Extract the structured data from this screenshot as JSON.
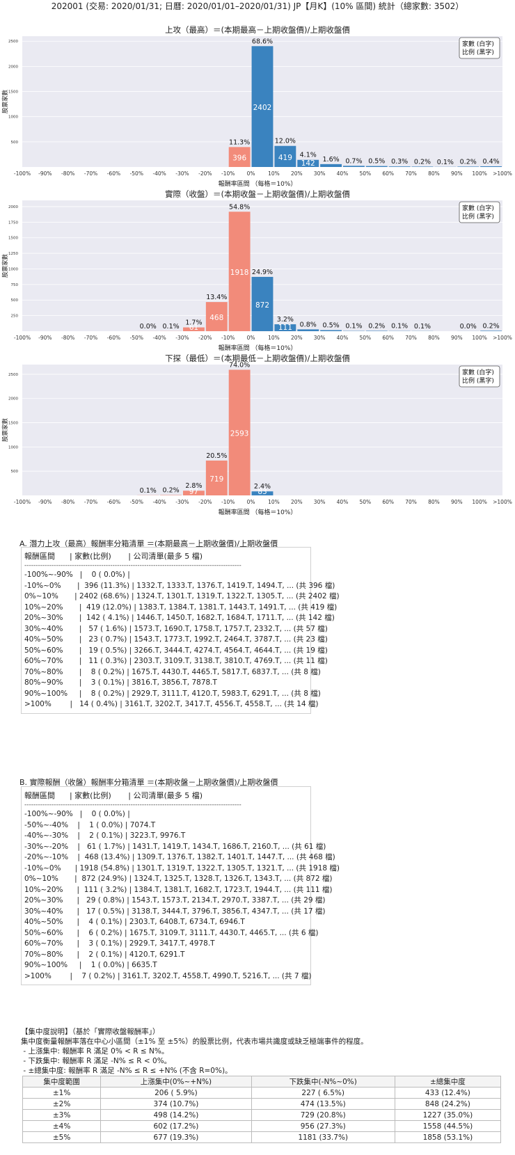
{
  "header": {
    "title": "202001 (交易: 2020/01/31; 日曆: 2020/01/01–2020/01/31) JP【月K】(10% 區間) 統計（總家數: 3502）"
  },
  "chart_data": [
    {
      "type": "bar",
      "title": "上攻（最高）＝(本期最高－上期收盤價)/上期收盤價",
      "ylabel": "股票家數",
      "xlabel": "報酬率區間 （每格＝10%）",
      "legend": [
        "家數 (白字)",
        "比例 (黑字)"
      ],
      "legend_position": "top-right",
      "xticks": [
        "-100%",
        "-90%",
        "-80%",
        "-70%",
        "-60%",
        "-50%",
        "-40%",
        "-30%",
        "-20%",
        "-10%",
        "0%",
        "10%",
        "20%",
        "30%",
        "40%",
        "50%",
        "60%",
        "70%",
        "80%",
        "90%",
        "100%",
        ">100%"
      ],
      "yticks": [
        500,
        1000,
        1500,
        2000,
        2500
      ],
      "ylim": [
        0,
        2600
      ],
      "colors": {
        "negative": "#f28b7a",
        "positive": "#3a83bf"
      },
      "bins": [
        {
          "value": 0,
          "pct": "",
          "count_label": ""
        },
        {
          "value": 0,
          "pct": "",
          "count_label": ""
        },
        {
          "value": 0,
          "pct": "",
          "count_label": ""
        },
        {
          "value": 0,
          "pct": "",
          "count_label": ""
        },
        {
          "value": 0,
          "pct": "",
          "count_label": ""
        },
        {
          "value": 0,
          "pct": "",
          "count_label": ""
        },
        {
          "value": 0,
          "pct": "",
          "count_label": ""
        },
        {
          "value": 0,
          "pct": "",
          "count_label": ""
        },
        {
          "value": 0,
          "pct": "",
          "count_label": ""
        },
        {
          "value": 396,
          "pct": "11.3%",
          "count_label": "396"
        },
        {
          "value": 2402,
          "pct": "68.6%",
          "count_label": "2402"
        },
        {
          "value": 419,
          "pct": "12.0%",
          "count_label": "419"
        },
        {
          "value": 142,
          "pct": "4.1%",
          "count_label": "142"
        },
        {
          "value": 57,
          "pct": "1.6%",
          "count_label": ""
        },
        {
          "value": 23,
          "pct": "0.7%",
          "count_label": ""
        },
        {
          "value": 19,
          "pct": "0.5%",
          "count_label": ""
        },
        {
          "value": 11,
          "pct": "0.3%",
          "count_label": ""
        },
        {
          "value": 8,
          "pct": "0.2%",
          "count_label": ""
        },
        {
          "value": 3,
          "pct": "0.1%",
          "count_label": ""
        },
        {
          "value": 8,
          "pct": "0.2%",
          "count_label": ""
        },
        {
          "value": 14,
          "pct": "0.4%",
          "count_label": ""
        }
      ]
    },
    {
      "type": "bar",
      "title": "實際（收盤）＝(本期收盤－上期收盤價)/上期收盤價",
      "ylabel": "股票家數",
      "xlabel": "報酬率區間 （每格＝10%）",
      "legend": [
        "家數 (白字)",
        "比例 (黑字)"
      ],
      "legend_position": "top-right",
      "xticks": [
        "-100%",
        "-90%",
        "-80%",
        "-70%",
        "-60%",
        "-50%",
        "-40%",
        "-30%",
        "-20%",
        "-10%",
        "0%",
        "10%",
        "20%",
        "30%",
        "40%",
        "50%",
        "60%",
        "70%",
        "80%",
        "90%",
        "100%",
        ">100%"
      ],
      "yticks": [
        250,
        500,
        750,
        1000,
        1250,
        1500,
        1750,
        2000
      ],
      "ylim": [
        0,
        2100
      ],
      "colors": {
        "negative": "#f28b7a",
        "positive": "#3a83bf"
      },
      "bins": [
        {
          "value": 0,
          "pct": "",
          "count_label": ""
        },
        {
          "value": 0,
          "pct": "",
          "count_label": ""
        },
        {
          "value": 0,
          "pct": "",
          "count_label": ""
        },
        {
          "value": 0,
          "pct": "",
          "count_label": ""
        },
        {
          "value": 0,
          "pct": "",
          "count_label": ""
        },
        {
          "value": 1,
          "pct": "0.0%",
          "count_label": ""
        },
        {
          "value": 2,
          "pct": "0.1%",
          "count_label": ""
        },
        {
          "value": 61,
          "pct": "1.7%",
          "count_label": "61"
        },
        {
          "value": 468,
          "pct": "13.4%",
          "count_label": "468"
        },
        {
          "value": 1918,
          "pct": "54.8%",
          "count_label": "1918"
        },
        {
          "value": 872,
          "pct": "24.9%",
          "count_label": "872"
        },
        {
          "value": 111,
          "pct": "3.2%",
          "count_label": "111"
        },
        {
          "value": 29,
          "pct": "0.8%",
          "count_label": ""
        },
        {
          "value": 17,
          "pct": "0.5%",
          "count_label": ""
        },
        {
          "value": 4,
          "pct": "0.1%",
          "count_label": ""
        },
        {
          "value": 6,
          "pct": "0.2%",
          "count_label": ""
        },
        {
          "value": 3,
          "pct": "0.1%",
          "count_label": ""
        },
        {
          "value": 2,
          "pct": "0.1%",
          "count_label": ""
        },
        {
          "value": 0,
          "pct": "",
          "count_label": ""
        },
        {
          "value": 1,
          "pct": "0.0%",
          "count_label": ""
        },
        {
          "value": 7,
          "pct": "0.2%",
          "count_label": ""
        }
      ]
    },
    {
      "type": "bar",
      "title": "下探（最低）＝(本期最低－上期收盤價)/上期收盤價",
      "ylabel": "股票家數",
      "xlabel": "報酬率區間 （每格＝10%）",
      "legend": [
        "家數 (白字)",
        "比例 (黑字)"
      ],
      "legend_position": "top-right",
      "xticks": [
        "-100%",
        "-90%",
        "-80%",
        "-70%",
        "-60%",
        "-50%",
        "-40%",
        "-30%",
        "-20%",
        "-10%",
        "0%",
        "10%",
        "20%",
        "30%",
        "40%",
        "50%",
        "60%",
        "70%",
        "80%",
        "90%",
        "100%",
        ">100%"
      ],
      "yticks": [
        500,
        1000,
        1500,
        2000,
        2500
      ],
      "ylim": [
        0,
        2700
      ],
      "colors": {
        "negative": "#f28b7a",
        "positive": "#3a83bf"
      },
      "bins": [
        {
          "value": 0,
          "pct": "",
          "count_label": ""
        },
        {
          "value": 0,
          "pct": "",
          "count_label": ""
        },
        {
          "value": 0,
          "pct": "",
          "count_label": ""
        },
        {
          "value": 0,
          "pct": "",
          "count_label": ""
        },
        {
          "value": 0,
          "pct": "",
          "count_label": ""
        },
        {
          "value": 3,
          "pct": "0.1%",
          "count_label": ""
        },
        {
          "value": 7,
          "pct": "0.2%",
          "count_label": ""
        },
        {
          "value": 97,
          "pct": "2.8%",
          "count_label": "97"
        },
        {
          "value": 719,
          "pct": "20.5%",
          "count_label": "719"
        },
        {
          "value": 2593,
          "pct": "74.0%",
          "count_label": "2593"
        },
        {
          "value": 83,
          "pct": "2.4%",
          "count_label": "83"
        },
        {
          "value": 0,
          "pct": "",
          "count_label": ""
        },
        {
          "value": 0,
          "pct": "",
          "count_label": ""
        },
        {
          "value": 0,
          "pct": "",
          "count_label": ""
        },
        {
          "value": 0,
          "pct": "",
          "count_label": ""
        },
        {
          "value": 0,
          "pct": "",
          "count_label": ""
        },
        {
          "value": 0,
          "pct": "",
          "count_label": ""
        },
        {
          "value": 0,
          "pct": "",
          "count_label": ""
        },
        {
          "value": 0,
          "pct": "",
          "count_label": ""
        },
        {
          "value": 0,
          "pct": "",
          "count_label": ""
        },
        {
          "value": 0,
          "pct": "",
          "count_label": ""
        }
      ]
    }
  ],
  "section_a": {
    "title": "A. 潛力上攻（最高）報酬率分箱清單 ＝(本期最高－上期收盤價)/上期收盤價",
    "header": "報酬區間      | 家數(比例)       | 公司清單(最多 5 檔)",
    "separator": "------------------------------------------------------------------------------------------------",
    "rows": [
      "-100%~-90%   |    0 ( 0.0%) |",
      "-10%~0%       |  396 (11.3%) | 1332.T, 1333.T, 1376.T, 1419.T, 1494.T, ... (共 396 檔)",
      "0%~10%       | 2402 (68.6%) | 1324.T, 1301.T, 1319.T, 1322.T, 1305.T, ... (共 2402 檔)",
      "10%~20%       |  419 (12.0%) | 1383.T, 1384.T, 1381.T, 1443.T, 1491.T, ... (共 419 檔)",
      "20%~30%       |  142 ( 4.1%) | 1446.T, 1450.T, 1682.T, 1684.T, 1711.T, ... (共 142 檔)",
      "30%~40%       |   57 ( 1.6%) | 1573.T, 1690.T, 1758.T, 1757.T, 2332.T, ... (共 57 檔)",
      "40%~50%       |   23 ( 0.7%) | 1543.T, 1773.T, 1992.T, 2464.T, 3787.T, ... (共 23 檔)",
      "50%~60%       |   19 ( 0.5%) | 3266.T, 3444.T, 4274.T, 4564.T, 4644.T, ... (共 19 檔)",
      "60%~70%       |   11 ( 0.3%) | 2303.T, 3109.T, 3138.T, 3810.T, 4769.T, ... (共 11 檔)",
      "70%~80%       |    8 ( 0.2%) | 1675.T, 4430.T, 4465.T, 5817.T, 6837.T, ... (共 8 檔)",
      "80%~90%       |    3 ( 0.1%) | 3816.T, 3856.T, 7878.T",
      "90%~100%     |    8 ( 0.2%) | 2929.T, 3111.T, 4120.T, 5983.T, 6291.T, ... (共 8 檔)",
      ">100%        |   14 ( 0.4%) | 3161.T, 3202.T, 3417.T, 4556.T, 4558.T, ... (共 14 檔)"
    ]
  },
  "section_b": {
    "title": "B. 實際報酬（收盤）報酬率分箱清單 ＝(本期收盤－上期收盤價)/上期收盤價",
    "header": "報酬區間      | 家數(比例)       | 公司清單(最多 5 檔)",
    "separator": "------------------------------------------------------------------------------------------------",
    "rows": [
      "-100%~-90%   |    0 ( 0.0%) |",
      "-50%~-40%    |    1 ( 0.0%) | 7074.T",
      "-40%~-30%    |    2 ( 0.1%) | 3223.T, 9976.T",
      "-30%~-20%    |   61 ( 1.7%) | 1431.T, 1419.T, 1434.T, 1686.T, 2160.T, ... (共 61 檔)",
      "-20%~-10%    |  468 (13.4%) | 1309.T, 1376.T, 1382.T, 1401.T, 1447.T, ... (共 468 檔)",
      "-10%~0%      | 1918 (54.8%) | 1301.T, 1319.T, 1322.T, 1305.T, 1321.T, ... (共 1918 檔)",
      "0%~10%       |  872 (24.9%) | 1324.T, 1325.T, 1328.T, 1326.T, 1343.T, ... (共 872 檔)",
      "10%~20%      |  111 ( 3.2%) | 1384.T, 1381.T, 1682.T, 1723.T, 1944.T, ... (共 111 檔)",
      "20%~30%      |   29 ( 0.8%) | 1543.T, 1573.T, 2134.T, 2970.T, 3387.T, ... (共 29 檔)",
      "30%~40%      |   17 ( 0.5%) | 3138.T, 3444.T, 3796.T, 3856.T, 4347.T, ... (共 17 檔)",
      "40%~50%      |    4 ( 0.1%) | 2303.T, 6408.T, 6734.T, 6946.T",
      "50%~60%      |    6 ( 0.2%) | 1675.T, 3109.T, 3111.T, 4430.T, 4465.T, ... (共 6 檔)",
      "60%~70%      |    3 ( 0.1%) | 2929.T, 3417.T, 4978.T",
      "70%~80%      |    2 ( 0.1%) | 4120.T, 6291.T",
      "90%~100%     |    1 ( 0.0%) | 6635.T",
      ">100%        |    7 ( 0.2%) | 3161.T, 3202.T, 4558.T, 4990.T, 5216.T, ... (共 7 檔)"
    ]
  },
  "concentration": {
    "heading": "【集中度說明】（基於「實際收盤報酬率」）",
    "lines": [
      "集中度衡量報酬率落在中心小區間（±1% 至 ±5%）的股票比例，代表市場共識度或缺乏極端事件的程度。",
      " - 上漲集中: 報酬率 R 滿足 0% < R ≤ N%。",
      " - 下跌集中: 報酬率 R 滿足 -N% ≤ R < 0%。",
      " - ±總集中度: 報酬率 R 滿足 -N% ≤ R ≤ +N% (不含 R=0%)。"
    ],
    "columns": [
      "集中度範圍",
      "上漲集中(0%~+N%)",
      "下跌集中(-N%~0%)",
      "±總集中度"
    ],
    "rows": [
      [
        "±1%",
        "206 ( 5.9%)",
        "227 ( 6.5%)",
        "433 (12.4%)"
      ],
      [
        "±2%",
        "374 (10.7%)",
        "474 (13.5%)",
        "848 (24.2%)"
      ],
      [
        "±3%",
        "498 (14.2%)",
        "729 (20.8%)",
        "1227 (35.0%)"
      ],
      [
        "±4%",
        "602 (17.2%)",
        "956 (27.3%)",
        "1558 (44.5%)"
      ],
      [
        "±5%",
        "677 (19.3%)",
        "1181 (33.7%)",
        "1858 (53.1%)"
      ]
    ]
  }
}
